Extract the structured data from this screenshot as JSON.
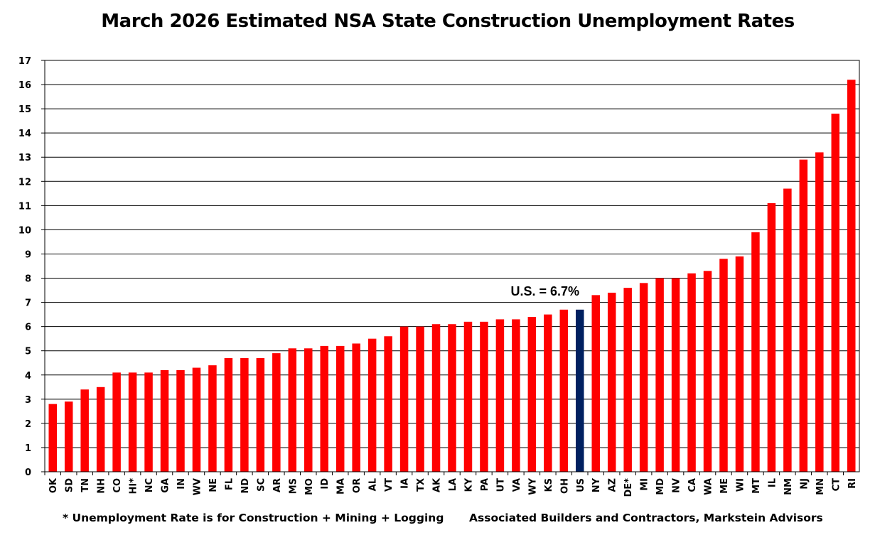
{
  "chart_data": {
    "type": "bar",
    "title": "March 2026 Estimated NSA State Construction Unemployment Rates",
    "xlabel": "",
    "ylabel": "",
    "ylim": [
      0,
      17
    ],
    "yticks": [
      0,
      1,
      2,
      3,
      4,
      5,
      6,
      7,
      8,
      9,
      10,
      11,
      12,
      13,
      14,
      15,
      16,
      17
    ],
    "grid": true,
    "categories": [
      "OK",
      "SD",
      "TN",
      "NH",
      "CO",
      "HI*",
      "NC",
      "GA",
      "IN",
      "WV",
      "NE",
      "FL",
      "ND",
      "SC",
      "AR",
      "MS",
      "MO",
      "ID",
      "MA",
      "OR",
      "AL",
      "VT",
      "IA",
      "TX",
      "AK",
      "LA",
      "KY",
      "PA",
      "UT",
      "VA",
      "WY",
      "KS",
      "OH",
      "US",
      "NY",
      "AZ",
      "DE*",
      "MI",
      "MD",
      "NV",
      "CA",
      "WA",
      "ME",
      "WI",
      "MT",
      "IL",
      "NM",
      "NJ",
      "MN",
      "CT",
      "RI"
    ],
    "values": [
      2.8,
      2.9,
      3.4,
      3.5,
      4.1,
      4.1,
      4.1,
      4.2,
      4.2,
      4.3,
      4.4,
      4.7,
      4.7,
      4.7,
      4.9,
      5.1,
      5.1,
      5.2,
      5.2,
      5.3,
      5.5,
      5.6,
      6.0,
      6.0,
      6.1,
      6.1,
      6.2,
      6.2,
      6.3,
      6.3,
      6.4,
      6.5,
      6.7,
      6.7,
      7.3,
      7.4,
      7.6,
      7.8,
      8.0,
      8.0,
      8.2,
      8.3,
      8.8,
      8.9,
      9.9,
      11.1,
      11.7,
      12.9,
      13.2,
      14.8,
      16.2
    ],
    "highlight": "US",
    "colors": {
      "bar": "#ff0000",
      "highlight": "#002060",
      "grid": "#000000"
    },
    "annotation": "U.S. = 6.7%"
  },
  "footnotes": {
    "left": "* Unemployment Rate is for Construction + Mining + Logging",
    "right": "Associated Builders and Contractors, Markstein Advisors"
  }
}
